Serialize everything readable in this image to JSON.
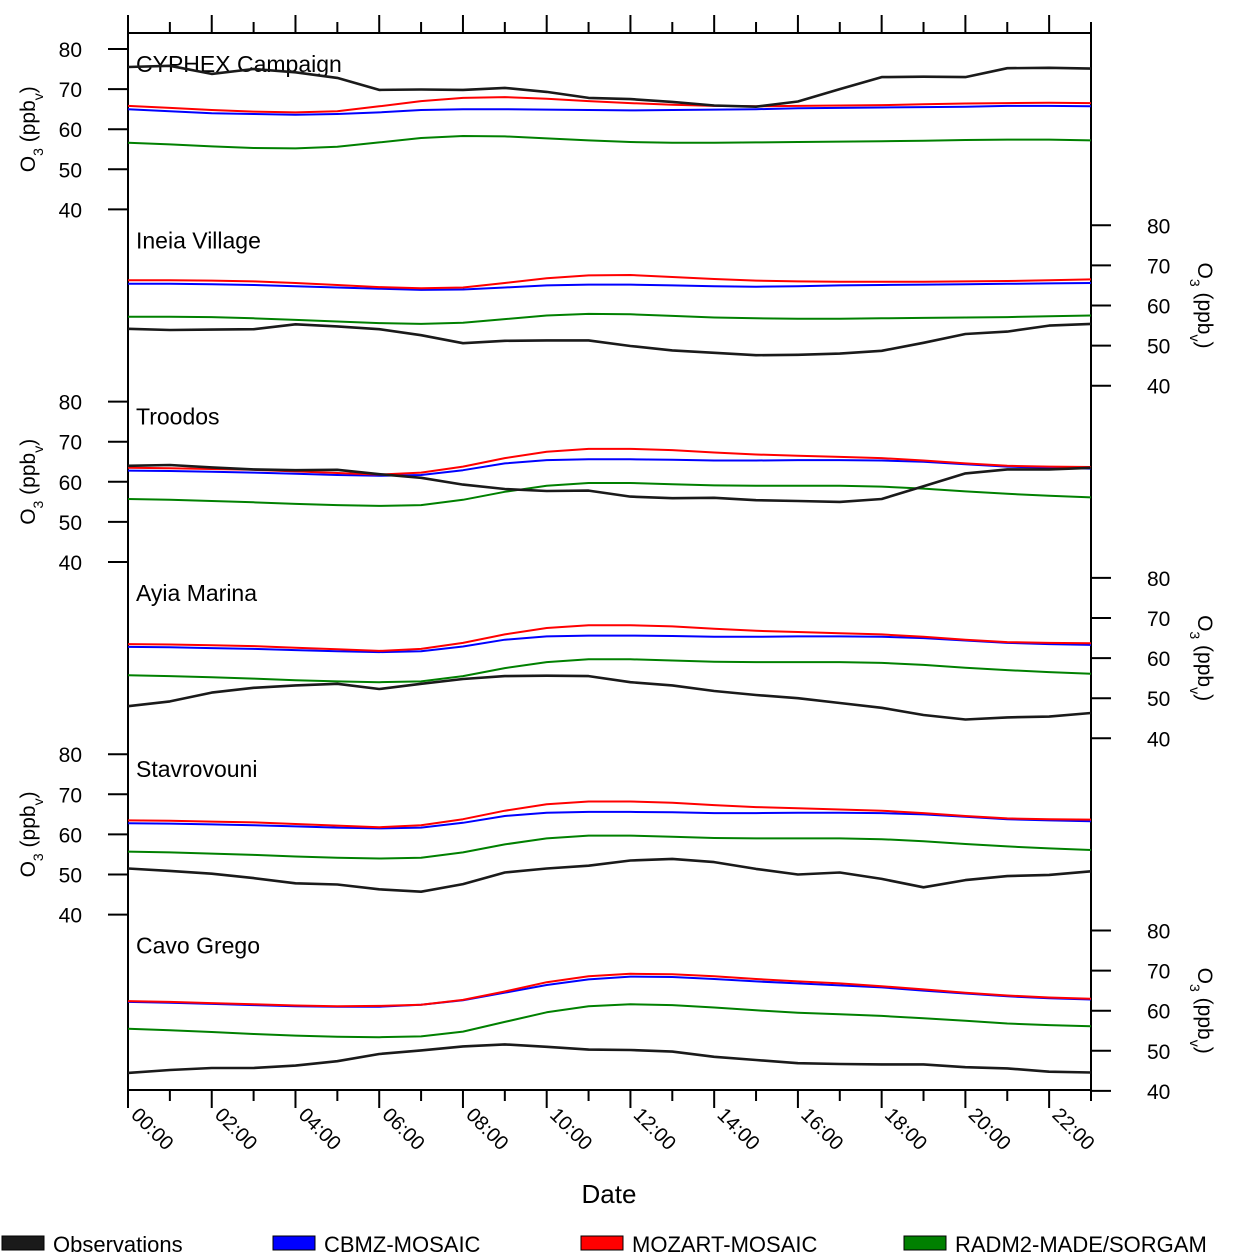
{
  "chart_data": {
    "type": "line",
    "xlabel": "Date",
    "x": [
      "00:00",
      "01:00",
      "02:00",
      "03:00",
      "04:00",
      "05:00",
      "06:00",
      "07:00",
      "08:00",
      "09:00",
      "10:00",
      "11:00",
      "12:00",
      "13:00",
      "14:00",
      "15:00",
      "16:00",
      "17:00",
      "18:00",
      "19:00",
      "20:00",
      "21:00",
      "22:00",
      "23:00"
    ],
    "x_tick_labels": [
      "00:00",
      "02:00",
      "04:00",
      "06:00",
      "08:00",
      "10:00",
      "12:00",
      "14:00",
      "16:00",
      "18:00",
      "20:00",
      "22:00"
    ],
    "ylabel": "O3 (ppbv)",
    "ylabel_parts": {
      "base": "O",
      "sub1": "3",
      "mid": " (ppb",
      "sub2": "v",
      "end": ")"
    },
    "y_ticks": [
      40,
      50,
      60,
      70,
      80
    ],
    "ylim": [
      40,
      80
    ],
    "legend": [
      {
        "name": "Observations",
        "color": "#1a1a1a"
      },
      {
        "name": "CBMZ-MOSAIC",
        "color": "#0000ff"
      },
      {
        "name": "MOZART-MOSAIC",
        "color": "#ff0000"
      },
      {
        "name": "RADM2-MADE/SORGAM",
        "color": "#008000"
      }
    ],
    "panels": [
      {
        "title": "CYPHEX Campaign",
        "axis_side": "left",
        "series": {
          "Observations": [
            75.5,
            75.8,
            73.8,
            75.0,
            74.2,
            72.8,
            69.8,
            69.9,
            69.8,
            70.3,
            69.3,
            67.8,
            67.5,
            66.8,
            65.9,
            65.6,
            66.9,
            70.0,
            73.0,
            73.1,
            73.0,
            75.2,
            75.3,
            75.1
          ],
          "CBMZ-MOSAIC": [
            65.0,
            64.5,
            64.0,
            63.8,
            63.6,
            63.8,
            64.2,
            64.8,
            65.0,
            65.0,
            64.9,
            64.8,
            64.7,
            64.8,
            64.9,
            65.0,
            65.2,
            65.3,
            65.4,
            65.5,
            65.6,
            65.8,
            65.8,
            65.7
          ],
          "MOZART-MOSAIC": [
            65.8,
            65.3,
            64.8,
            64.4,
            64.2,
            64.5,
            65.7,
            67.0,
            67.8,
            68.0,
            67.6,
            67.0,
            66.5,
            66.1,
            65.8,
            65.7,
            65.8,
            65.9,
            66.0,
            66.2,
            66.4,
            66.5,
            66.6,
            66.5
          ],
          "RADM2-MADE/SORGAM": [
            56.6,
            56.2,
            55.7,
            55.3,
            55.2,
            55.6,
            56.7,
            57.8,
            58.3,
            58.2,
            57.7,
            57.2,
            56.8,
            56.6,
            56.6,
            56.7,
            56.8,
            56.9,
            57.0,
            57.1,
            57.3,
            57.4,
            57.4,
            57.2
          ]
        }
      },
      {
        "title": "Ineia Village",
        "axis_side": "right",
        "series": {
          "Observations": [
            54.2,
            53.9,
            54.0,
            54.1,
            55.3,
            54.8,
            54.1,
            52.6,
            50.6,
            51.2,
            51.3,
            51.3,
            49.9,
            48.8,
            48.2,
            47.6,
            47.7,
            48.0,
            48.7,
            50.7,
            52.9,
            53.5,
            55.0,
            55.4
          ],
          "CBMZ-MOSAIC": [
            65.4,
            65.4,
            65.3,
            65.1,
            64.8,
            64.5,
            64.2,
            63.9,
            64.0,
            64.5,
            65.0,
            65.2,
            65.2,
            65.0,
            64.8,
            64.7,
            64.8,
            65.0,
            65.1,
            65.2,
            65.3,
            65.4,
            65.5,
            65.6
          ],
          "MOZART-MOSAIC": [
            66.3,
            66.3,
            66.2,
            66.0,
            65.6,
            65.1,
            64.6,
            64.3,
            64.5,
            65.6,
            66.8,
            67.5,
            67.6,
            67.1,
            66.6,
            66.2,
            66.0,
            65.9,
            65.9,
            65.9,
            66.0,
            66.1,
            66.3,
            66.5
          ],
          "RADM2-MADE/SORGAM": [
            57.2,
            57.2,
            57.1,
            56.8,
            56.4,
            56.0,
            55.6,
            55.4,
            55.7,
            56.6,
            57.5,
            57.9,
            57.8,
            57.4,
            57.0,
            56.8,
            56.7,
            56.7,
            56.8,
            56.9,
            57.0,
            57.1,
            57.3,
            57.5
          ]
        }
      },
      {
        "title": "Troodos",
        "axis_side": "left",
        "series": {
          "Observations": [
            64.0,
            64.2,
            63.6,
            63.1,
            62.9,
            63.0,
            61.9,
            61.0,
            59.3,
            58.2,
            57.7,
            57.8,
            56.3,
            55.9,
            56.0,
            55.4,
            55.2,
            55.0,
            55.7,
            58.9,
            62.1,
            63.1,
            63.1,
            63.5
          ],
          "CBMZ-MOSAIC": [
            62.8,
            62.7,
            62.5,
            62.3,
            62.0,
            61.7,
            61.5,
            61.7,
            62.9,
            64.6,
            65.4,
            65.6,
            65.6,
            65.5,
            65.3,
            65.3,
            65.4,
            65.4,
            65.3,
            65.0,
            64.4,
            63.8,
            63.5,
            63.3
          ],
          "MOZART-MOSAIC": [
            63.5,
            63.4,
            63.2,
            63.0,
            62.6,
            62.2,
            61.8,
            62.3,
            63.8,
            65.9,
            67.5,
            68.2,
            68.2,
            67.9,
            67.3,
            66.8,
            66.5,
            66.2,
            65.9,
            65.3,
            64.6,
            64.0,
            63.8,
            63.7
          ],
          "RADM2-MADE/SORGAM": [
            55.7,
            55.5,
            55.2,
            54.9,
            54.5,
            54.2,
            54.0,
            54.2,
            55.5,
            57.5,
            59.0,
            59.7,
            59.7,
            59.4,
            59.1,
            59.0,
            59.0,
            59.0,
            58.8,
            58.3,
            57.6,
            57.0,
            56.5,
            56.1
          ]
        }
      },
      {
        "title": "Ayia Marina",
        "axis_side": "right",
        "series": {
          "Observations": [
            48.0,
            49.2,
            51.4,
            52.6,
            53.2,
            53.6,
            52.3,
            53.6,
            54.8,
            55.5,
            55.6,
            55.5,
            54.0,
            53.2,
            51.8,
            50.8,
            50.0,
            48.8,
            47.6,
            45.8,
            44.7,
            45.2,
            45.4,
            46.3
          ],
          "CBMZ-MOSAIC": [
            62.8,
            62.7,
            62.5,
            62.3,
            62.0,
            61.7,
            61.5,
            61.7,
            62.9,
            64.6,
            65.4,
            65.6,
            65.6,
            65.5,
            65.3,
            65.3,
            65.4,
            65.4,
            65.3,
            65.0,
            64.4,
            63.8,
            63.5,
            63.3
          ],
          "MOZART-MOSAIC": [
            63.5,
            63.4,
            63.2,
            63.0,
            62.6,
            62.2,
            61.8,
            62.3,
            63.8,
            65.9,
            67.5,
            68.2,
            68.2,
            67.9,
            67.3,
            66.8,
            66.5,
            66.2,
            65.9,
            65.3,
            64.6,
            64.0,
            63.8,
            63.7
          ],
          "RADM2-MADE/SORGAM": [
            55.7,
            55.5,
            55.2,
            54.9,
            54.5,
            54.2,
            54.0,
            54.2,
            55.5,
            57.5,
            59.0,
            59.7,
            59.7,
            59.4,
            59.1,
            59.0,
            59.0,
            59.0,
            58.8,
            58.3,
            57.6,
            57.0,
            56.5,
            56.1
          ]
        }
      },
      {
        "title": "Stavrovouni",
        "axis_side": "left",
        "series": {
          "Observations": [
            51.5,
            50.9,
            50.2,
            49.1,
            47.8,
            47.5,
            46.3,
            45.7,
            47.6,
            50.5,
            51.5,
            52.2,
            53.5,
            53.9,
            53.1,
            51.4,
            50.0,
            50.5,
            48.9,
            46.8,
            48.6,
            49.6,
            49.9,
            50.8
          ],
          "CBMZ-MOSAIC": [
            62.8,
            62.7,
            62.5,
            62.3,
            62.0,
            61.7,
            61.5,
            61.7,
            62.9,
            64.6,
            65.4,
            65.6,
            65.6,
            65.5,
            65.3,
            65.3,
            65.4,
            65.4,
            65.3,
            65.0,
            64.4,
            63.8,
            63.5,
            63.3
          ],
          "MOZART-MOSAIC": [
            63.5,
            63.4,
            63.2,
            63.0,
            62.6,
            62.2,
            61.8,
            62.3,
            63.8,
            65.9,
            67.5,
            68.2,
            68.2,
            67.9,
            67.3,
            66.8,
            66.5,
            66.2,
            65.9,
            65.3,
            64.6,
            64.0,
            63.8,
            63.7
          ],
          "RADM2-MADE/SORGAM": [
            55.7,
            55.5,
            55.2,
            54.9,
            54.5,
            54.2,
            54.0,
            54.2,
            55.5,
            57.5,
            59.0,
            59.7,
            59.7,
            59.4,
            59.1,
            59.0,
            59.0,
            59.0,
            58.8,
            58.3,
            57.6,
            57.0,
            56.5,
            56.1
          ]
        }
      },
      {
        "title": "Cavo Grego",
        "axis_side": "right",
        "series": {
          "Observations": [
            44.5,
            45.2,
            45.7,
            45.7,
            46.3,
            47.4,
            49.2,
            50.1,
            51.1,
            51.6,
            51.0,
            50.3,
            50.2,
            49.8,
            48.5,
            47.7,
            46.9,
            46.7,
            46.6,
            46.6,
            45.9,
            45.6,
            44.8,
            44.6
          ],
          "CBMZ-MOSAIC": [
            62.2,
            62.0,
            61.7,
            61.4,
            61.1,
            61.0,
            61.0,
            61.5,
            62.6,
            64.5,
            66.4,
            67.8,
            68.5,
            68.4,
            67.9,
            67.3,
            66.8,
            66.3,
            65.8,
            65.0,
            64.3,
            63.6,
            63.1,
            62.8
          ],
          "MOZART-MOSAIC": [
            62.4,
            62.2,
            61.9,
            61.6,
            61.3,
            61.1,
            61.2,
            61.5,
            62.7,
            64.8,
            67.1,
            68.6,
            69.2,
            69.1,
            68.6,
            67.9,
            67.3,
            66.8,
            66.1,
            65.3,
            64.5,
            63.8,
            63.3,
            63.0
          ],
          "RADM2-MADE/SORGAM": [
            55.5,
            55.1,
            54.7,
            54.2,
            53.8,
            53.5,
            53.4,
            53.6,
            54.8,
            57.2,
            59.6,
            61.1,
            61.6,
            61.4,
            60.8,
            60.1,
            59.5,
            59.1,
            58.7,
            58.1,
            57.5,
            56.8,
            56.4,
            56.1
          ]
        }
      }
    ]
  }
}
